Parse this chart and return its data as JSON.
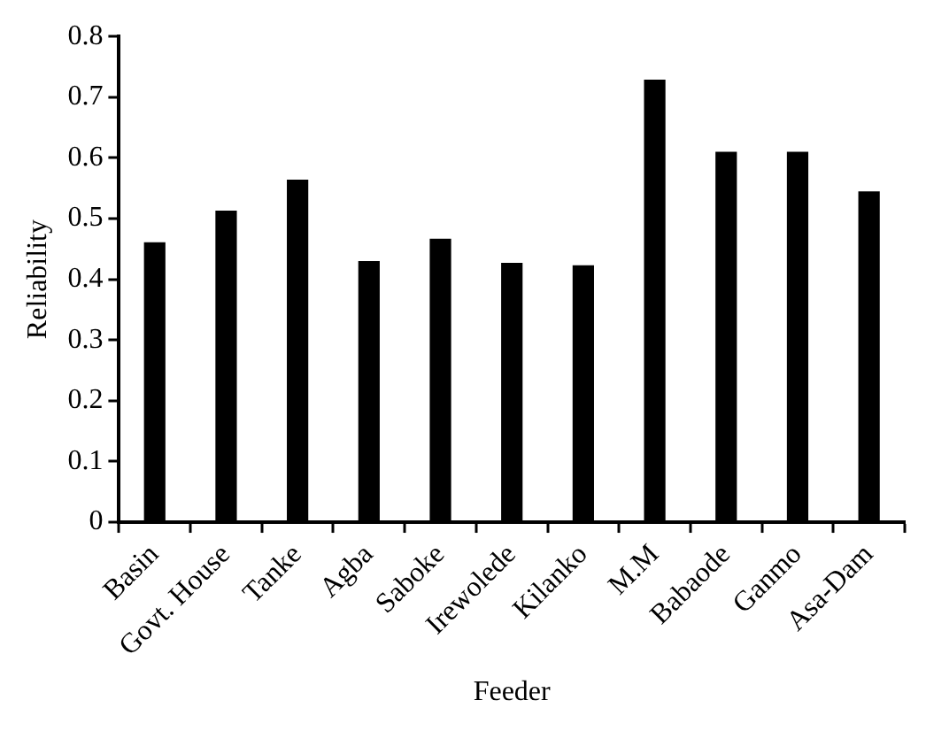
{
  "chart_data": {
    "type": "bar",
    "xlabel": "Feeder",
    "ylabel": "Reliability",
    "categories": [
      "Basin",
      "Govt. House",
      "Tanke",
      "Agba",
      "Saboke",
      "Irewolede",
      "Kilanko",
      "M.M",
      "Babaode",
      "Ganmo",
      "Asa-Dam"
    ],
    "values": [
      0.461,
      0.513,
      0.564,
      0.43,
      0.467,
      0.427,
      0.423,
      0.729,
      0.61,
      0.61,
      0.545
    ],
    "color": "#000000",
    "ylim": [
      0,
      0.8
    ],
    "yticks": [
      0,
      0.1,
      0.2,
      0.3,
      0.4,
      0.5,
      0.6,
      0.7,
      0.8
    ],
    "grid": false,
    "legend": false
  }
}
